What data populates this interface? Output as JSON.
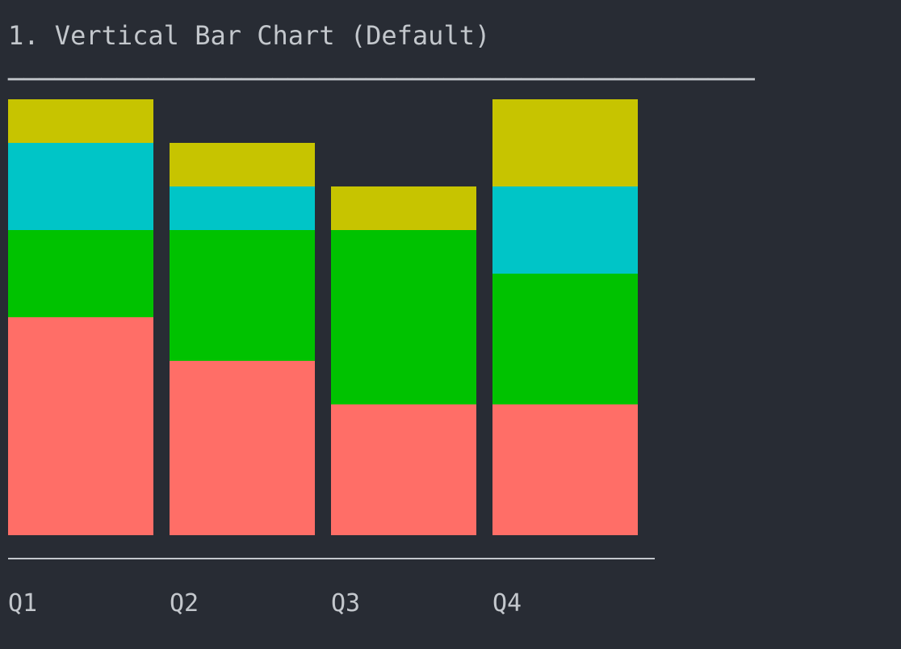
{
  "title": "1. Vertical Bar Chart (Default)",
  "title_rule": "────────────────────────────────────────────────",
  "colors": {
    "background": "#282c34",
    "text": "#c3c7cc",
    "axis": "#c3c7cc",
    "segment_colors": [
      "#ff6e67",
      "#00c200",
      "#00c5c7",
      "#c7c400"
    ]
  },
  "chart_data": {
    "type": "bar",
    "stacked": true,
    "categories": [
      "Q1",
      "Q2",
      "Q3",
      "Q4"
    ],
    "series": [
      {
        "values": [
          5,
          4,
          3,
          3
        ]
      },
      {
        "values": [
          2,
          3,
          4,
          3
        ]
      },
      {
        "values": [
          2,
          1,
          0,
          2
        ]
      },
      {
        "values": [
          1,
          1,
          1,
          2
        ]
      }
    ],
    "ylim": [
      0,
      10
    ],
    "grid": false,
    "legend": "none"
  }
}
